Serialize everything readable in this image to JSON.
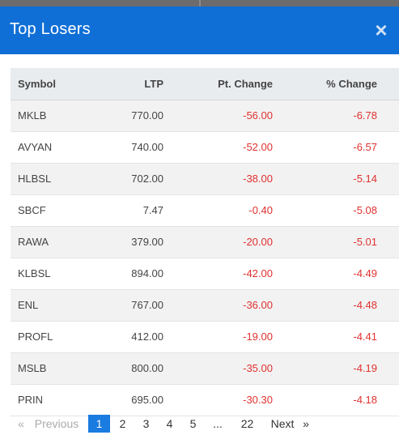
{
  "modal": {
    "title": "Top Losers",
    "close_symbol": "×"
  },
  "table": {
    "headers": {
      "symbol": "Symbol",
      "ltp": "LTP",
      "pt_change": "Pt. Change",
      "pct_change": "% Change"
    },
    "rows": [
      {
        "symbol": "MKLB",
        "ltp": "770.00",
        "pt_change": "-56.00",
        "pct_change": "-6.78"
      },
      {
        "symbol": "AVYAN",
        "ltp": "740.00",
        "pt_change": "-52.00",
        "pct_change": "-6.57"
      },
      {
        "symbol": "HLBSL",
        "ltp": "702.00",
        "pt_change": "-38.00",
        "pct_change": "-5.14"
      },
      {
        "symbol": "SBCF",
        "ltp": "7.47",
        "pt_change": "-0.40",
        "pct_change": "-5.08"
      },
      {
        "symbol": "RAWA",
        "ltp": "379.00",
        "pt_change": "-20.00",
        "pct_change": "-5.01"
      },
      {
        "symbol": "KLBSL",
        "ltp": "894.00",
        "pt_change": "-42.00",
        "pct_change": "-4.49"
      },
      {
        "symbol": "ENL",
        "ltp": "767.00",
        "pt_change": "-36.00",
        "pct_change": "-4.48"
      },
      {
        "symbol": "PROFL",
        "ltp": "412.00",
        "pt_change": "-19.00",
        "pct_change": "-4.41"
      },
      {
        "symbol": "MSLB",
        "ltp": "800.00",
        "pt_change": "-35.00",
        "pct_change": "-4.19"
      },
      {
        "symbol": "PRIN",
        "ltp": "695.00",
        "pt_change": "-30.30",
        "pct_change": "-4.18"
      }
    ]
  },
  "pagination": {
    "prev_arrow": "«",
    "prev_label": "Previous",
    "pages": [
      "1",
      "2",
      "3",
      "4",
      "5"
    ],
    "current_page": "1",
    "ellipsis": "...",
    "last_page": "22",
    "next_label": "Next",
    "next_arrow": "»"
  },
  "colors": {
    "header_bg": "#0f6fd6",
    "negative": "#e0312f",
    "active_page": "#1a7be0",
    "table_header_bg": "#e9ecef"
  }
}
